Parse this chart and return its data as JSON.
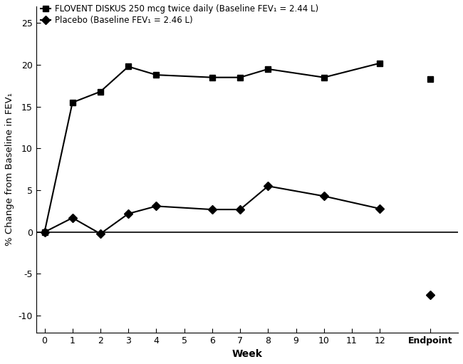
{
  "flovent_weeks": [
    0,
    1,
    2,
    3,
    4,
    6,
    7,
    8,
    10,
    12
  ],
  "flovent_values": [
    0,
    15.5,
    16.8,
    19.8,
    18.8,
    18.5,
    18.5,
    19.5,
    18.5,
    20.2
  ],
  "flovent_endpoint": 18.3,
  "placebo_weeks": [
    0,
    1,
    2,
    3,
    4,
    6,
    7,
    8,
    10,
    12
  ],
  "placebo_values": [
    0,
    1.7,
    -0.2,
    2.2,
    3.1,
    2.7,
    2.7,
    5.5,
    4.3,
    2.8
  ],
  "placebo_endpoint": -7.5,
  "x_tick_positions": [
    0,
    1,
    2,
    3,
    4,
    5,
    6,
    7,
    8,
    9,
    10,
    11,
    12,
    13.8
  ],
  "x_tick_labels": [
    "0",
    "1",
    "2",
    "3",
    "4",
    "5",
    "6",
    "7",
    "8",
    "9",
    "10",
    "11",
    "12",
    "Endpoint"
  ],
  "ylabel": "% Change from Baseline in FEV₁",
  "xlabel": "Week",
  "ylim": [
    -12,
    27
  ],
  "xlim": [
    -0.3,
    14.8
  ],
  "yticks": [
    -10,
    -5,
    0,
    5,
    10,
    15,
    20,
    25
  ],
  "legend_flovent": "FLOVENT DISKUS 250 mcg twice daily (Baseline FEV₁ = 2.44 L)",
  "legend_placebo": "Placebo (Baseline FEV₁ = 2.46 L)",
  "color": "#000000",
  "linewidth": 1.5,
  "markersize": 6
}
